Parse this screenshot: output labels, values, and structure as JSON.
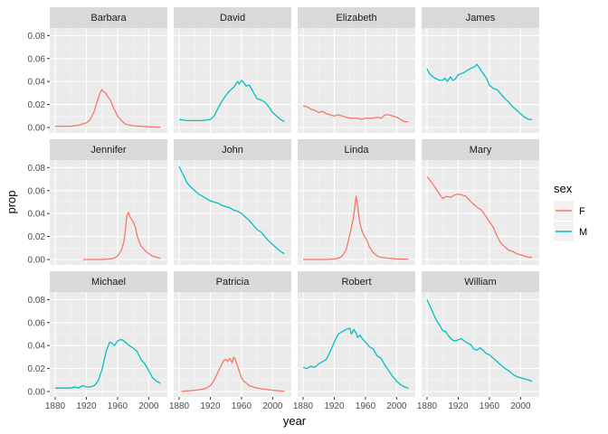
{
  "chart_data": {
    "type": "line",
    "facet_layout": "wrap",
    "xlabel": "year",
    "ylabel": "prop",
    "xlim": [
      1880,
      2017
    ],
    "ylim": [
      0,
      0.085
    ],
    "x_ticks": [
      1880,
      1920,
      1960,
      2000
    ],
    "y_ticks": [
      0.0,
      0.02,
      0.04,
      0.06,
      0.08
    ],
    "x_tick_labels": [
      "1880",
      "1920",
      "1960",
      "2000"
    ],
    "y_tick_labels": [
      "0.00",
      "0.02",
      "0.04",
      "0.06",
      "0.08"
    ],
    "grid": true,
    "legend": {
      "title": "sex",
      "position": "right",
      "entries": [
        {
          "label": "F",
          "color": "#F8766D"
        },
        {
          "label": "M",
          "color": "#00BFC4"
        }
      ]
    },
    "panels": [
      {
        "name": "Barbara",
        "sex": "F",
        "x": [
          1880,
          1900,
          1910,
          1920,
          1925,
          1930,
          1935,
          1938,
          1940,
          1942,
          1945,
          1947,
          1950,
          1955,
          1960,
          1965,
          1970,
          1980,
          1990,
          2000,
          2010,
          2015
        ],
        "y": [
          0.001,
          0.001,
          0.002,
          0.004,
          0.007,
          0.014,
          0.025,
          0.031,
          0.033,
          0.031,
          0.03,
          0.027,
          0.025,
          0.017,
          0.01,
          0.006,
          0.003,
          0.0015,
          0.001,
          0.0006,
          0.0004,
          0.0003
        ]
      },
      {
        "name": "David",
        "sex": "M",
        "x": [
          1880,
          1890,
          1900,
          1910,
          1920,
          1925,
          1930,
          1935,
          1940,
          1945,
          1950,
          1953,
          1955,
          1957,
          1960,
          1963,
          1966,
          1970,
          1975,
          1980,
          1985,
          1990,
          1995,
          2000,
          2005,
          2010,
          2015
        ],
        "y": [
          0.007,
          0.006,
          0.006,
          0.006,
          0.007,
          0.01,
          0.017,
          0.023,
          0.028,
          0.032,
          0.035,
          0.038,
          0.04,
          0.038,
          0.041,
          0.039,
          0.036,
          0.037,
          0.031,
          0.025,
          0.024,
          0.022,
          0.018,
          0.013,
          0.01,
          0.007,
          0.005
        ]
      },
      {
        "name": "Elizabeth",
        "sex": "F",
        "x": [
          1880,
          1885,
          1890,
          1895,
          1900,
          1905,
          1910,
          1915,
          1920,
          1925,
          1930,
          1935,
          1940,
          1945,
          1950,
          1955,
          1960,
          1965,
          1970,
          1975,
          1980,
          1985,
          1990,
          1995,
          2000,
          2005,
          2010,
          2015
        ],
        "y": [
          0.019,
          0.018,
          0.016,
          0.015,
          0.013,
          0.014,
          0.012,
          0.011,
          0.01,
          0.011,
          0.01,
          0.009,
          0.008,
          0.008,
          0.008,
          0.007,
          0.008,
          0.008,
          0.008,
          0.009,
          0.008,
          0.011,
          0.011,
          0.01,
          0.009,
          0.007,
          0.005,
          0.005
        ]
      },
      {
        "name": "James",
        "sex": "M",
        "x": [
          1880,
          1883,
          1886,
          1890,
          1893,
          1896,
          1900,
          1903,
          1906,
          1910,
          1913,
          1916,
          1920,
          1924,
          1928,
          1932,
          1935,
          1938,
          1941,
          1944,
          1947,
          1950,
          1953,
          1956,
          1960,
          1965,
          1970,
          1975,
          1980,
          1985,
          1990,
          1995,
          2000,
          2005,
          2010,
          2015
        ],
        "y": [
          0.051,
          0.047,
          0.045,
          0.043,
          0.042,
          0.041,
          0.041,
          0.043,
          0.04,
          0.044,
          0.041,
          0.042,
          0.046,
          0.047,
          0.048,
          0.05,
          0.051,
          0.052,
          0.053,
          0.055,
          0.052,
          0.049,
          0.046,
          0.043,
          0.037,
          0.034,
          0.033,
          0.029,
          0.025,
          0.022,
          0.018,
          0.015,
          0.012,
          0.009,
          0.007,
          0.007
        ]
      },
      {
        "name": "Jennifer",
        "sex": "F",
        "x": [
          1916,
          1930,
          1940,
          1950,
          1955,
          1960,
          1965,
          1968,
          1970,
          1972,
          1974,
          1976,
          1978,
          1980,
          1983,
          1985,
          1988,
          1990,
          1995,
          2000,
          2005,
          2010,
          2015
        ],
        "y": [
          0.0,
          0.0,
          0.0,
          0.0005,
          0.001,
          0.003,
          0.008,
          0.015,
          0.025,
          0.038,
          0.041,
          0.037,
          0.035,
          0.033,
          0.028,
          0.021,
          0.015,
          0.012,
          0.008,
          0.005,
          0.003,
          0.002,
          0.001
        ]
      },
      {
        "name": "John",
        "sex": "M",
        "x": [
          1880,
          1885,
          1890,
          1895,
          1900,
          1905,
          1910,
          1915,
          1920,
          1925,
          1930,
          1935,
          1940,
          1945,
          1950,
          1955,
          1960,
          1965,
          1970,
          1975,
          1980,
          1985,
          1990,
          1995,
          2000,
          2005,
          2010,
          2015
        ],
        "y": [
          0.081,
          0.074,
          0.067,
          0.063,
          0.06,
          0.057,
          0.055,
          0.053,
          0.051,
          0.05,
          0.049,
          0.047,
          0.046,
          0.045,
          0.043,
          0.042,
          0.04,
          0.037,
          0.034,
          0.03,
          0.026,
          0.024,
          0.02,
          0.016,
          0.013,
          0.01,
          0.007,
          0.005
        ]
      },
      {
        "name": "Linda",
        "sex": "F",
        "x": [
          1880,
          1900,
          1910,
          1920,
          1925,
          1930,
          1935,
          1938,
          1940,
          1942,
          1945,
          1947,
          1948,
          1950,
          1952,
          1955,
          1958,
          1960,
          1963,
          1965,
          1970,
          1975,
          1980,
          1990,
          2000,
          2010,
          2015
        ],
        "y": [
          0.0,
          0.0,
          0.0,
          0.0005,
          0.001,
          0.003,
          0.008,
          0.016,
          0.022,
          0.028,
          0.038,
          0.05,
          0.055,
          0.047,
          0.035,
          0.026,
          0.021,
          0.019,
          0.015,
          0.011,
          0.006,
          0.003,
          0.002,
          0.001,
          0.0005,
          0.0003,
          0.0003
        ]
      },
      {
        "name": "Mary",
        "sex": "F",
        "x": [
          1880,
          1885,
          1890,
          1895,
          1900,
          1905,
          1910,
          1915,
          1920,
          1925,
          1930,
          1935,
          1940,
          1945,
          1950,
          1955,
          1960,
          1965,
          1970,
          1975,
          1980,
          1985,
          1990,
          1995,
          2000,
          2005,
          2010,
          2015
        ],
        "y": [
          0.072,
          0.068,
          0.063,
          0.058,
          0.053,
          0.055,
          0.054,
          0.056,
          0.057,
          0.056,
          0.055,
          0.051,
          0.048,
          0.045,
          0.043,
          0.038,
          0.033,
          0.028,
          0.02,
          0.014,
          0.011,
          0.008,
          0.007,
          0.005,
          0.004,
          0.003,
          0.002,
          0.002
        ]
      },
      {
        "name": "Michael",
        "sex": "M",
        "x": [
          1880,
          1890,
          1900,
          1905,
          1910,
          1915,
          1920,
          1925,
          1930,
          1935,
          1940,
          1943,
          1946,
          1950,
          1953,
          1956,
          1960,
          1963,
          1966,
          1970,
          1975,
          1980,
          1985,
          1990,
          1995,
          2000,
          2005,
          2010,
          2015
        ],
        "y": [
          0.003,
          0.003,
          0.003,
          0.004,
          0.003,
          0.005,
          0.004,
          0.004,
          0.005,
          0.009,
          0.019,
          0.028,
          0.036,
          0.043,
          0.042,
          0.04,
          0.044,
          0.045,
          0.045,
          0.043,
          0.04,
          0.038,
          0.035,
          0.028,
          0.024,
          0.018,
          0.012,
          0.009,
          0.007
        ]
      },
      {
        "name": "Patricia",
        "sex": "F",
        "x": [
          1883,
          1890,
          1900,
          1910,
          1915,
          1920,
          1925,
          1930,
          1935,
          1937,
          1940,
          1942,
          1945,
          1948,
          1950,
          1952,
          1955,
          1958,
          1960,
          1963,
          1965,
          1970,
          1980,
          1990,
          2000,
          2010,
          2015
        ],
        "y": [
          0.0,
          0.0005,
          0.001,
          0.002,
          0.003,
          0.005,
          0.01,
          0.017,
          0.024,
          0.027,
          0.028,
          0.026,
          0.029,
          0.025,
          0.03,
          0.028,
          0.022,
          0.016,
          0.012,
          0.009,
          0.008,
          0.005,
          0.003,
          0.002,
          0.001,
          0.0005,
          0.0003
        ]
      },
      {
        "name": "Robert",
        "sex": "M",
        "x": [
          1880,
          1885,
          1890,
          1895,
          1900,
          1905,
          1910,
          1915,
          1920,
          1925,
          1930,
          1935,
          1940,
          1942,
          1945,
          1948,
          1950,
          1953,
          1956,
          1960,
          1965,
          1970,
          1975,
          1980,
          1985,
          1990,
          1995,
          2000,
          2005,
          2010,
          2015
        ],
        "y": [
          0.021,
          0.02,
          0.022,
          0.021,
          0.024,
          0.026,
          0.028,
          0.035,
          0.043,
          0.05,
          0.052,
          0.054,
          0.055,
          0.05,
          0.054,
          0.051,
          0.047,
          0.049,
          0.046,
          0.043,
          0.039,
          0.037,
          0.031,
          0.029,
          0.023,
          0.018,
          0.013,
          0.009,
          0.006,
          0.004,
          0.003
        ]
      },
      {
        "name": "William",
        "sex": "M",
        "x": [
          1880,
          1884,
          1888,
          1892,
          1896,
          1900,
          1904,
          1908,
          1912,
          1916,
          1920,
          1924,
          1928,
          1932,
          1936,
          1940,
          1944,
          1948,
          1952,
          1956,
          1960,
          1965,
          1970,
          1975,
          1980,
          1985,
          1990,
          1995,
          2000,
          2005,
          2010,
          2015
        ],
        "y": [
          0.08,
          0.074,
          0.068,
          0.062,
          0.058,
          0.053,
          0.052,
          0.048,
          0.045,
          0.044,
          0.045,
          0.046,
          0.044,
          0.042,
          0.041,
          0.037,
          0.036,
          0.038,
          0.036,
          0.033,
          0.032,
          0.029,
          0.026,
          0.023,
          0.02,
          0.018,
          0.015,
          0.013,
          0.012,
          0.011,
          0.01,
          0.009
        ]
      }
    ]
  }
}
